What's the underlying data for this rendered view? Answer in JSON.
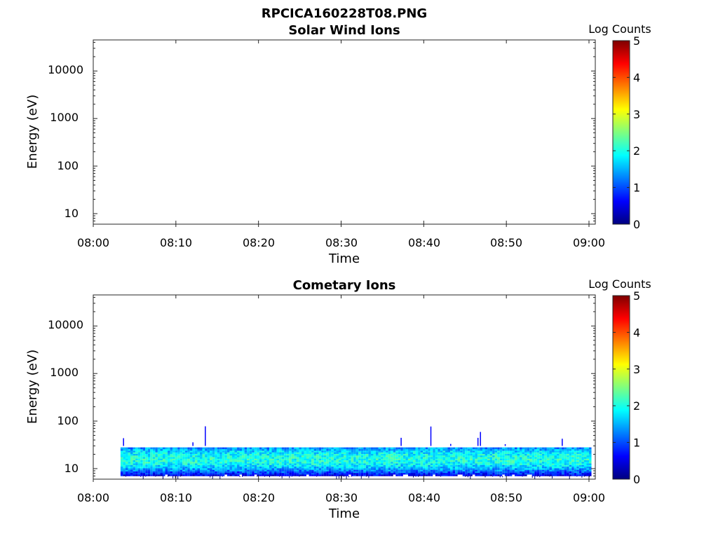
{
  "figure": {
    "title": "RPCICA160228T08.PNG",
    "colormap": [
      "#00007f",
      "#0000ff",
      "#007fff",
      "#00ffff",
      "#7fff7f",
      "#ffff00",
      "#ff7f00",
      "#ff0000",
      "#7f0000"
    ]
  },
  "chart_data": [
    {
      "type": "heatmap",
      "title": "Solar Wind Ions",
      "xlabel": "Time",
      "ylabel": "Energy (eV)",
      "x_ticklabels": [
        "08:00",
        "08:10",
        "08:20",
        "08:30",
        "08:40",
        "08:50",
        "09:00"
      ],
      "y_ticklabels": [
        "10",
        "100",
        "1000",
        "10000"
      ],
      "y_scale": "log",
      "ylim": [
        6,
        45000
      ],
      "colorbar": {
        "label": "Log Counts",
        "ticks": [
          "0",
          "1",
          "2",
          "3",
          "4",
          "5"
        ],
        "range": [
          0,
          5
        ]
      },
      "data": "empty"
    },
    {
      "type": "heatmap",
      "title": "Cometary Ions",
      "xlabel": "Time",
      "ylabel": "Energy (eV)",
      "x_ticklabels": [
        "08:00",
        "08:10",
        "08:20",
        "08:30",
        "08:40",
        "08:50",
        "09:00"
      ],
      "y_ticklabels": [
        "10",
        "100",
        "1000",
        "10000"
      ],
      "y_scale": "log",
      "ylim": [
        6,
        45000
      ],
      "colorbar": {
        "label": "Log Counts",
        "ticks": [
          "0",
          "1",
          "2",
          "3",
          "4",
          "5"
        ],
        "range": [
          0,
          5
        ]
      },
      "data": {
        "time_range": [
          "08:03",
          "09:00"
        ],
        "energy_band_eV": [
          7,
          30
        ],
        "peak_energy_eV": [
          12,
          22
        ],
        "peak_log_counts": 2.0,
        "sparse_spikes_up_to_eV": 80
      }
    }
  ]
}
